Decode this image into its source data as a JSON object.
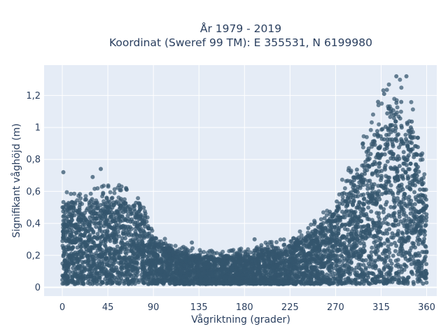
{
  "chart_data": {
    "type": "scatter",
    "title_line1": "År 1979 - 2019",
    "title_line2": "Koordinat (Sweref 99 TM): E 355531, N 6199980",
    "xlabel": "Vågriktning (grader)",
    "ylabel": "Signifikant våghöjd (m)",
    "xlim": [
      -18,
      370
    ],
    "ylim": [
      -0.055,
      1.39
    ],
    "x_ticks": [
      0,
      45,
      90,
      135,
      180,
      225,
      270,
      315,
      360
    ],
    "x_tick_labels": [
      "0",
      "45",
      "90",
      "135",
      "180",
      "225",
      "270",
      "315",
      "360"
    ],
    "y_ticks": [
      0,
      0.2,
      0.4,
      0.6,
      0.8,
      1.0,
      1.2
    ],
    "y_tick_labels": [
      "0",
      "0,2",
      "0,4",
      "0,6",
      "0,8",
      "1",
      "1,2"
    ],
    "grid": true,
    "marker_color": "#34566e",
    "plot_background": "#e5ecf6",
    "envelope_max_height": [
      {
        "x": 0,
        "y": 0.57
      },
      {
        "x": 20,
        "y": 0.56
      },
      {
        "x": 45,
        "y": 0.58
      },
      {
        "x": 65,
        "y": 0.57
      },
      {
        "x": 80,
        "y": 0.52
      },
      {
        "x": 90,
        "y": 0.3
      },
      {
        "x": 110,
        "y": 0.25
      },
      {
        "x": 135,
        "y": 0.21
      },
      {
        "x": 160,
        "y": 0.2
      },
      {
        "x": 180,
        "y": 0.22
      },
      {
        "x": 200,
        "y": 0.25
      },
      {
        "x": 225,
        "y": 0.28
      },
      {
        "x": 250,
        "y": 0.38
      },
      {
        "x": 270,
        "y": 0.55
      },
      {
        "x": 290,
        "y": 0.75
      },
      {
        "x": 305,
        "y": 0.95
      },
      {
        "x": 315,
        "y": 1.1
      },
      {
        "x": 325,
        "y": 1.2
      },
      {
        "x": 335,
        "y": 1.22
      },
      {
        "x": 345,
        "y": 1.05
      },
      {
        "x": 355,
        "y": 0.78
      },
      {
        "x": 360,
        "y": 0.55
      }
    ],
    "notable_points": [
      {
        "x": 1,
        "y": 0.72
      },
      {
        "x": 38,
        "y": 0.74
      },
      {
        "x": 30,
        "y": 0.69
      },
      {
        "x": 63,
        "y": 0.62
      },
      {
        "x": 330,
        "y": 1.32
      },
      {
        "x": 340,
        "y": 1.32
      },
      {
        "x": 318,
        "y": 1.21
      },
      {
        "x": 312,
        "y": 1.16
      },
      {
        "x": 297,
        "y": 0.9
      },
      {
        "x": 243,
        "y": 0.37
      },
      {
        "x": 190,
        "y": 0.3
      },
      {
        "x": 128,
        "y": 0.28
      }
    ]
  }
}
